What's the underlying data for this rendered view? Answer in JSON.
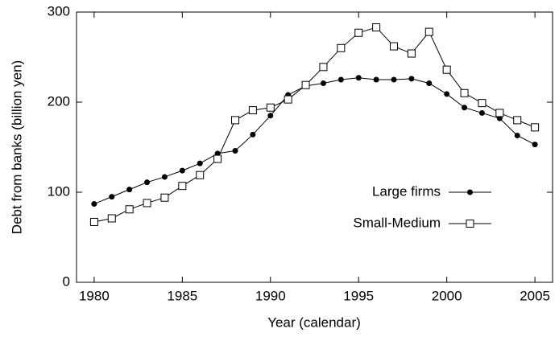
{
  "chart_data": {
    "type": "line",
    "x_label": "Year (calendar)",
    "y_label": "Debt from banks (billion yen)",
    "x": [
      1980,
      1981,
      1982,
      1983,
      1984,
      1985,
      1986,
      1987,
      1988,
      1989,
      1990,
      1991,
      1992,
      1993,
      1994,
      1995,
      1996,
      1997,
      1998,
      1999,
      2000,
      2001,
      2002,
      2003,
      2004,
      2005
    ],
    "series": [
      {
        "name": "Large firms",
        "color": "#000000",
        "marker": "filled-circle",
        "values": [
          87,
          95,
          103,
          111,
          117,
          124,
          132,
          143,
          146,
          164,
          185,
          208,
          218,
          221,
          225,
          227,
          225,
          225,
          226,
          221,
          209,
          194,
          188,
          182,
          163,
          153
        ]
      },
      {
        "name": "Small-Medium",
        "color": "#000000",
        "marker": "open-square",
        "values": [
          67,
          71,
          81,
          88,
          94,
          107,
          119,
          137,
          180,
          191,
          194,
          203,
          219,
          239,
          260,
          277,
          283,
          262,
          254,
          278,
          236,
          210,
          199,
          188,
          180,
          172
        ]
      }
    ],
    "xlim": [
      1979,
      2006
    ],
    "xticks": [
      1980,
      1985,
      1990,
      1995,
      2000,
      2005
    ],
    "ylim": [
      0,
      300
    ],
    "yticks": [
      0,
      100,
      200,
      300
    ],
    "legend": "center-right"
  }
}
